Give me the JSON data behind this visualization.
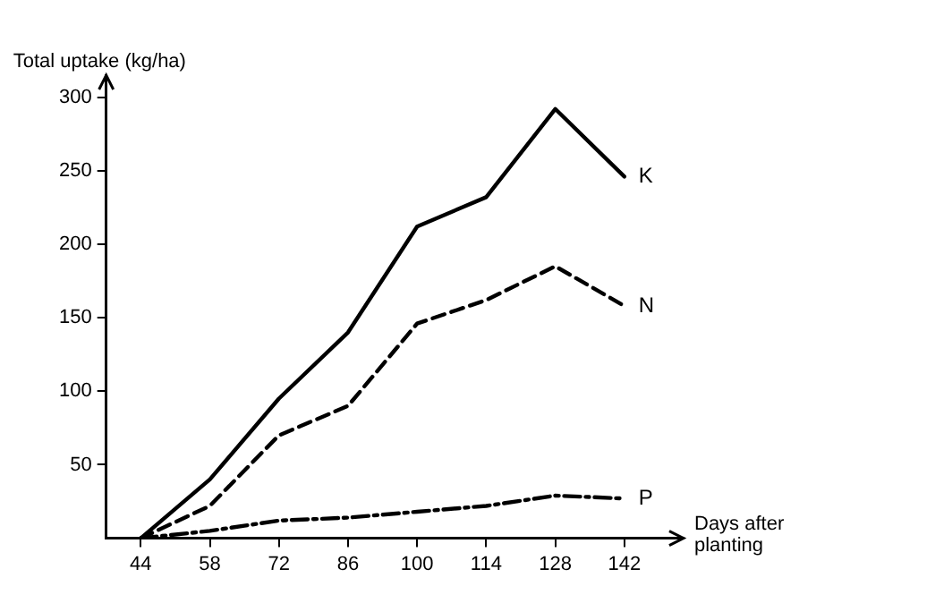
{
  "chart_data": {
    "type": "line",
    "xlabel": "Days after planting",
    "ylabel": "Total uptake (kg/ha)",
    "x": [
      44,
      58,
      72,
      86,
      100,
      114,
      128,
      142
    ],
    "xlim": [
      37,
      154
    ],
    "xticks": [
      44,
      58,
      72,
      86,
      100,
      114,
      128,
      142
    ],
    "ylim": [
      0,
      315
    ],
    "yticks": [
      50,
      100,
      150,
      200,
      250,
      300
    ],
    "grid": false,
    "legend": false,
    "marker": "none",
    "series": [
      {
        "name": "K",
        "color": "#000000",
        "line_style": "solid",
        "values": [
          0,
          40,
          95,
          140,
          212,
          232,
          292,
          246
        ]
      },
      {
        "name": "N",
        "color": "#000000",
        "line_style": "dashed",
        "values": [
          0,
          22,
          70,
          90,
          146,
          162,
          185,
          158
        ]
      },
      {
        "name": "P",
        "color": "#000000",
        "line_style": "dotted",
        "values": [
          0,
          5,
          12,
          14,
          18,
          22,
          29,
          27
        ]
      }
    ]
  }
}
